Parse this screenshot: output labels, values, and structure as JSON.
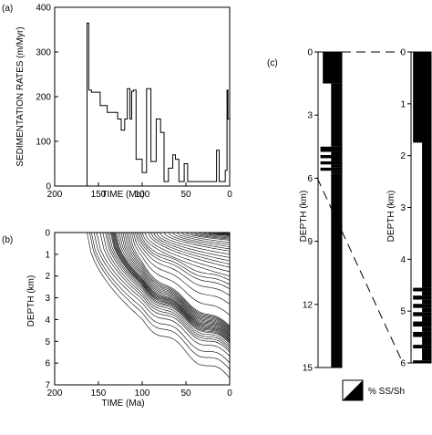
{
  "panels": {
    "a": "(a)",
    "b": "(b)",
    "c": "(c)"
  },
  "legend": {
    "label": "% SS/Sh"
  },
  "chart_data": [
    {
      "id": "a",
      "type": "line",
      "ylabel": "SEDIMENTATION RATES (m/Myr)",
      "xlabel": "TIME (Ma)",
      "xlim": [
        200,
        0
      ],
      "ylim": [
        0,
        400
      ],
      "xticks": [
        "200",
        "150",
        "100",
        "50",
        "0"
      ],
      "yticks": [
        "0",
        "100",
        "200",
        "300",
        "400"
      ],
      "series": [
        {
          "x": [
            163,
            163,
            161,
            161,
            158,
            158,
            148,
            148,
            140,
            140,
            133,
            133,
            128,
            128,
            124,
            124,
            120,
            120,
            117,
            117,
            114,
            114,
            112,
            112,
            110,
            110,
            107,
            107,
            100,
            100,
            95,
            95,
            90,
            90,
            84,
            84,
            79,
            79,
            75,
            75,
            70,
            70,
            65,
            65,
            62,
            62,
            58,
            58,
            55,
            55,
            52,
            52,
            48,
            48,
            45,
            45,
            35,
            35,
            15,
            15,
            12,
            12,
            8,
            8,
            5,
            5,
            3,
            3,
            2,
            2,
            0
          ],
          "y": [
            0,
            365,
            365,
            215,
            215,
            210,
            210,
            180,
            180,
            165,
            165,
            165,
            165,
            150,
            150,
            125,
            125,
            150,
            150,
            218,
            218,
            150,
            150,
            212,
            212,
            215,
            215,
            60,
            60,
            30,
            30,
            218,
            218,
            55,
            55,
            150,
            150,
            120,
            120,
            10,
            10,
            40,
            40,
            70,
            70,
            60,
            60,
            10,
            10,
            10,
            10,
            50,
            50,
            10,
            10,
            10,
            10,
            10,
            10,
            80,
            80,
            10,
            10,
            10,
            10,
            35,
            35,
            215,
            215,
            150,
            150
          ]
        }
      ]
    },
    {
      "id": "b",
      "type": "line",
      "ylabel": "DEPTH (km)",
      "xlabel": "TIME (Ma)",
      "xlim": [
        200,
        0
      ],
      "ylim": [
        7,
        0
      ],
      "xticks": [
        "200",
        "150",
        "100",
        "50",
        "0"
      ],
      "yticks": [
        "0",
        "1",
        "2",
        "3",
        "4",
        "5",
        "6",
        "7"
      ],
      "series_description": "burial history curves",
      "curve_family": {
        "start_ages": [
          163,
          160,
          158,
          155,
          152,
          148,
          145,
          142,
          140,
          138,
          136,
          135,
          134,
          133,
          132,
          131,
          130,
          128,
          126,
          124,
          122,
          120,
          118,
          116,
          114,
          112,
          110,
          108,
          106,
          104,
          102,
          100,
          97,
          93,
          90,
          87,
          84,
          80,
          75,
          70,
          65,
          60,
          55,
          50,
          45,
          40,
          35,
          30,
          25,
          20,
          15,
          10,
          5
        ],
        "final_depths": [
          6.7,
          6.3,
          6.0,
          5.7,
          5.5,
          5.4,
          5.3,
          5.2,
          5.1,
          5.05,
          5.0,
          4.95,
          4.9,
          4.85,
          4.8,
          4.75,
          4.7,
          4.65,
          4.6,
          4.55,
          4.5,
          4.45,
          4.4,
          4.35,
          4.3,
          3.8,
          3.3,
          2.9,
          2.6,
          2.4,
          2.2,
          2.0,
          1.8,
          1.6,
          1.45,
          1.3,
          1.15,
          1.0,
          0.85,
          0.75,
          0.65,
          0.55,
          0.45,
          0.35,
          0.3,
          0.25,
          0.2,
          0.15,
          0.12,
          0.1,
          0.07,
          0.05,
          0.03
        ]
      }
    },
    {
      "id": "c1",
      "type": "bar",
      "ylabel": "DEPTH (km)",
      "ylim": [
        15,
        0
      ],
      "yticks": [
        "0",
        "3",
        "6",
        "9",
        "12",
        "15"
      ],
      "lithology_column": [
        {
          "top": 0,
          "bottom": 1.5,
          "ss_fraction": 0.2
        },
        {
          "top": 1.5,
          "bottom": 4.5,
          "ss_fraction": 0.55
        },
        {
          "top": 4.5,
          "bottom": 4.75,
          "ss_fraction": 0.1
        },
        {
          "top": 4.75,
          "bottom": 4.9,
          "ss_fraction": 0.55
        },
        {
          "top": 4.9,
          "bottom": 5.05,
          "ss_fraction": 0.1
        },
        {
          "top": 5.05,
          "bottom": 5.2,
          "ss_fraction": 0.55
        },
        {
          "top": 5.2,
          "bottom": 5.35,
          "ss_fraction": 0.1
        },
        {
          "top": 5.35,
          "bottom": 5.5,
          "ss_fraction": 0.55
        },
        {
          "top": 5.5,
          "bottom": 5.65,
          "ss_fraction": 0.1
        },
        {
          "top": 5.65,
          "bottom": 5.8,
          "ss_fraction": 0.55
        },
        {
          "top": 5.8,
          "bottom": 15,
          "ss_fraction": 0.55
        }
      ]
    },
    {
      "id": "c2",
      "type": "bar",
      "ylabel": "DEPTH (km)",
      "ylim": [
        6,
        0
      ],
      "yticks": [
        "0",
        "1",
        "2",
        "3",
        "4",
        "5",
        "6"
      ],
      "lithology_column": [
        {
          "top": 0,
          "bottom": 1.75,
          "ss_fraction": 0.1
        },
        {
          "top": 1.75,
          "bottom": 4.55,
          "ss_fraction": 0.55
        },
        {
          "top": 4.55,
          "bottom": 4.62,
          "ss_fraction": 0.1
        },
        {
          "top": 4.62,
          "bottom": 4.7,
          "ss_fraction": 0.55
        },
        {
          "top": 4.7,
          "bottom": 4.78,
          "ss_fraction": 0.1
        },
        {
          "top": 4.78,
          "bottom": 4.86,
          "ss_fraction": 0.55
        },
        {
          "top": 4.86,
          "bottom": 4.94,
          "ss_fraction": 0.1
        },
        {
          "top": 4.94,
          "bottom": 5.02,
          "ss_fraction": 0.55
        },
        {
          "top": 5.02,
          "bottom": 5.1,
          "ss_fraction": 0.1
        },
        {
          "top": 5.1,
          "bottom": 5.2,
          "ss_fraction": 0.55
        },
        {
          "top": 5.2,
          "bottom": 5.3,
          "ss_fraction": 0.1
        },
        {
          "top": 5.3,
          "bottom": 5.4,
          "ss_fraction": 0.55
        },
        {
          "top": 5.4,
          "bottom": 5.5,
          "ss_fraction": 0.1
        },
        {
          "top": 5.5,
          "bottom": 5.65,
          "ss_fraction": 0.55
        },
        {
          "top": 5.65,
          "bottom": 5.72,
          "ss_fraction": 0.1
        },
        {
          "top": 5.72,
          "bottom": 5.95,
          "ss_fraction": 0.55
        },
        {
          "top": 5.95,
          "bottom": 6.0,
          "ss_fraction": 0.1
        }
      ]
    }
  ]
}
